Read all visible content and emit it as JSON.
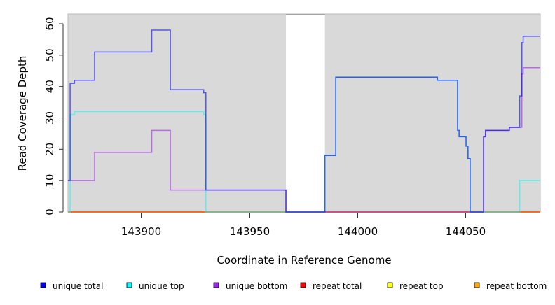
{
  "chart_data": {
    "type": "line",
    "step": true,
    "title": "",
    "xlabel": "Coordinate in Reference Genome",
    "ylabel": "Read Coverage Depth",
    "xlim": [
      143866.3,
      144084.5
    ],
    "ylim": [
      0,
      63
    ],
    "xticks": [
      143900,
      143950,
      144000,
      144050
    ],
    "xtick_labels": [
      "143900",
      "143950",
      "144000",
      "144050"
    ],
    "yticks": [
      0,
      10,
      20,
      30,
      40,
      50,
      60
    ],
    "ytick_labels": [
      "0",
      "10",
      "20",
      "30",
      "40",
      "50",
      "60"
    ],
    "shaded_regions": [
      [
        143866.3,
        143967
      ],
      [
        143985,
        144084.5
      ]
    ],
    "unshaded_region": [
      143967,
      143985
    ],
    "legend_placement": "bottom",
    "series": [
      {
        "name": "unique total",
        "color": "#0000ff",
        "steps": [
          [
            143866.3,
            10
          ],
          [
            143867.3,
            41
          ],
          [
            143869.3,
            42
          ],
          [
            143878.6,
            51
          ],
          [
            143905,
            58
          ],
          [
            143913.6,
            39
          ],
          [
            143929,
            38
          ],
          [
            143930,
            7
          ],
          [
            143967,
            0
          ],
          [
            143985,
            18
          ],
          [
            143990,
            43
          ],
          [
            144037,
            42
          ],
          [
            144046.3,
            26
          ],
          [
            144047,
            24
          ],
          [
            144050.2,
            21
          ],
          [
            144051.1,
            17
          ],
          [
            144052.1,
            0
          ],
          [
            144058.3,
            24
          ],
          [
            144059.2,
            26
          ],
          [
            144070.2,
            27
          ],
          [
            144075,
            37
          ],
          [
            144076,
            54
          ],
          [
            144076.6,
            56
          ]
        ]
      },
      {
        "name": "unique top",
        "color": "#00ffff",
        "steps": [
          [
            143866.3,
            0
          ],
          [
            143867.3,
            31
          ],
          [
            143869.3,
            32
          ],
          [
            143929,
            31
          ],
          [
            143930,
            0
          ],
          [
            143985,
            18
          ],
          [
            143990,
            43
          ],
          [
            144037,
            42
          ],
          [
            144046.3,
            26
          ],
          [
            144047,
            24
          ],
          [
            144050.2,
            21
          ],
          [
            144051.1,
            17
          ],
          [
            144052.1,
            0
          ],
          [
            144075,
            10
          ]
        ]
      },
      {
        "name": "unique bottom",
        "color": "#a020f0",
        "steps": [
          [
            143866.3,
            10
          ],
          [
            143878.6,
            19
          ],
          [
            143905,
            26
          ],
          [
            143913.6,
            7
          ],
          [
            143967,
            0
          ],
          [
            144058.3,
            24
          ],
          [
            144059.2,
            26
          ],
          [
            144070.2,
            27
          ],
          [
            144076,
            44
          ],
          [
            144076.6,
            46
          ]
        ]
      },
      {
        "name": "repeat total",
        "color": "#ff0000",
        "steps": [
          [
            143866.3,
            0
          ]
        ]
      },
      {
        "name": "repeat top",
        "color": "#ffff00",
        "steps": [
          [
            143866.3,
            0
          ]
        ]
      },
      {
        "name": "repeat bottom",
        "color": "#ffa500",
        "steps": [
          [
            143866.3,
            0
          ]
        ]
      }
    ]
  }
}
